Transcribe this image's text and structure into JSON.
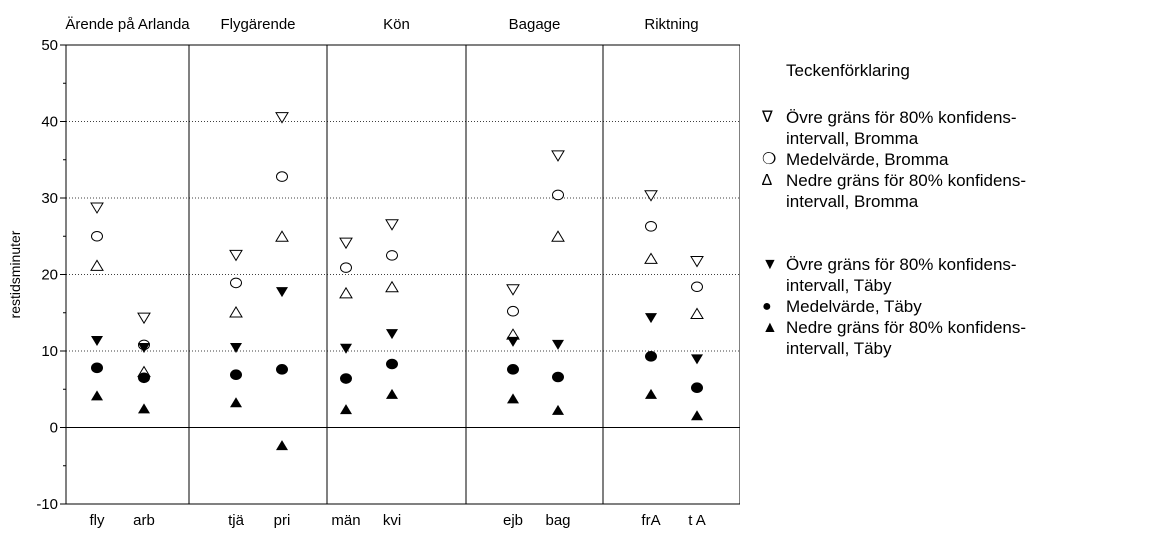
{
  "chart_data": {
    "type": "scatter",
    "ylabel": "restidsminuter",
    "ylim": [
      -10,
      50
    ],
    "yticks": [
      -10,
      0,
      10,
      20,
      30,
      40,
      50
    ],
    "grid_y_dotted": [
      10,
      20,
      30,
      40
    ],
    "groups": [
      {
        "name": "Ärende på Arlanda",
        "categories": [
          "fly",
          "arb"
        ]
      },
      {
        "name": "Flygärende",
        "categories": [
          "tjä",
          "pri"
        ]
      },
      {
        "name": "Kön",
        "categories": [
          "män",
          "kvi"
        ]
      },
      {
        "name": "Bagage",
        "categories": [
          "ejb",
          "bag"
        ]
      },
      {
        "name": "Riktning",
        "categories": [
          "frA",
          "t A"
        ]
      }
    ],
    "categories": [
      "fly",
      "arb",
      "tjä",
      "pri",
      "män",
      "kvi",
      "ejb",
      "bag",
      "frA",
      "t A"
    ],
    "series": [
      {
        "name": "Övre gräns för 80% konfidensintervall, Bromma",
        "marker": "triangle-down-open",
        "values": [
          28.7,
          14.3,
          22.5,
          40.5,
          24.1,
          26.5,
          18.0,
          35.5,
          30.3,
          21.7
        ]
      },
      {
        "name": "Medelvärde, Bromma",
        "marker": "circle-open",
        "values": [
          25.0,
          10.8,
          18.9,
          32.8,
          20.9,
          22.5,
          15.2,
          30.4,
          26.3,
          18.4
        ]
      },
      {
        "name": "Nedre gräns för 80% konfidensintervall, Bromma",
        "marker": "triangle-up-open",
        "values": [
          21.2,
          7.3,
          15.1,
          25.0,
          17.6,
          18.4,
          12.2,
          25.0,
          22.1,
          14.9
        ]
      },
      {
        "name": "Övre gräns för 80% konfidensintervall, Täby",
        "marker": "triangle-down-filled",
        "values": [
          11.3,
          10.4,
          10.4,
          17.7,
          10.3,
          12.2,
          11.2,
          10.8,
          14.3,
          8.9
        ]
      },
      {
        "name": "Medelvärde, Täby",
        "marker": "circle-filled",
        "values": [
          7.8,
          6.5,
          6.9,
          7.6,
          6.4,
          8.3,
          7.6,
          6.6,
          9.3,
          5.2
        ]
      },
      {
        "name": "Nedre gräns för 80% konfidensintervall, Täby",
        "marker": "triangle-up-filled",
        "values": [
          4.2,
          2.5,
          3.3,
          -2.3,
          2.4,
          4.4,
          3.8,
          2.3,
          4.4,
          1.6
        ]
      }
    ]
  },
  "legend": {
    "title": "Teckenförklaring",
    "bromma": [
      {
        "symbol": "∇",
        "line1": "Övre gräns för 80% konfidens-",
        "line2": "intervall, Bromma"
      },
      {
        "symbol": "❍",
        "line1": "Medelvärde, Bromma",
        "line2": ""
      },
      {
        "symbol": "∆",
        "line1": "Nedre gräns för 80% konfidens-",
        "line2": "intervall, Bromma"
      }
    ],
    "taby": [
      {
        "symbol": "▼",
        "line1": "Övre gräns för 80% konfidens-",
        "line2": "intervall, Täby"
      },
      {
        "symbol": "●",
        "line1": "Medelvärde, Täby",
        "line2": ""
      },
      {
        "symbol": "▲",
        "line1": "Nedre gräns för 80% konfidens-",
        "line2": "intervall, Täby"
      }
    ]
  }
}
